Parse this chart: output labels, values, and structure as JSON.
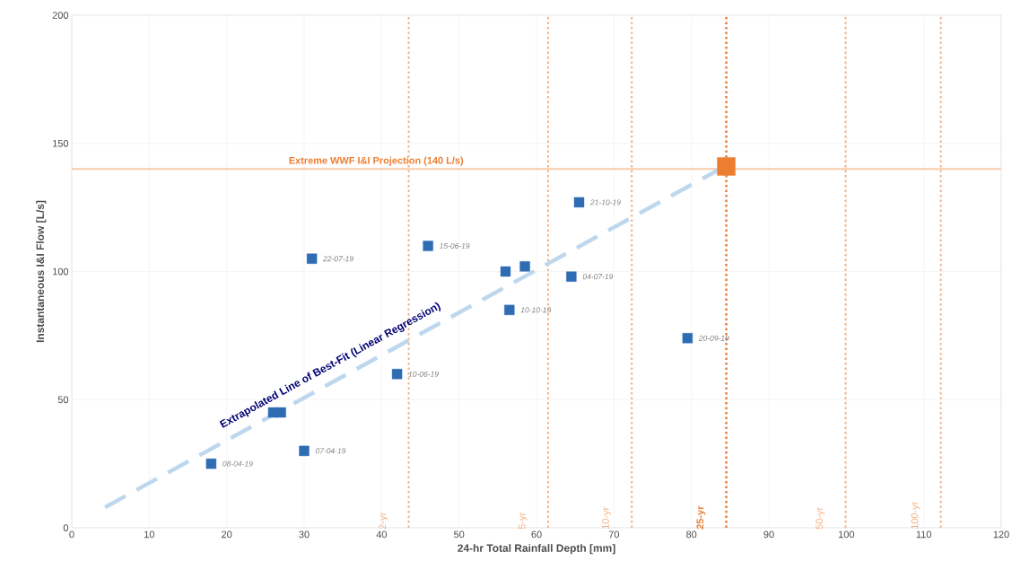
{
  "chart_data": {
    "type": "scatter",
    "xlabel": "24-hr Total Rainfall Depth  [mm]",
    "ylabel": "Instantaneous I&I Flow [L/s]",
    "xlim": [
      0,
      120
    ],
    "xticks": [
      0,
      10,
      20,
      30,
      40,
      50,
      60,
      70,
      80,
      90,
      100,
      110,
      120
    ],
    "ylim": [
      0,
      200
    ],
    "yticks": [
      0,
      50,
      100,
      150,
      200
    ],
    "grid": true,
    "series": [
      {
        "color": "#2e6db4",
        "marker": "square",
        "x": [
          18,
          30,
          26,
          27,
          42,
          31,
          46,
          56,
          58.5,
          64.5,
          56.5,
          65.5,
          79.5
        ],
        "values": [
          25,
          30,
          45,
          45,
          60,
          105,
          110,
          100,
          102,
          98,
          85,
          127,
          74
        ],
        "value_labels": [
          "08-04-19",
          "07-04-19",
          null,
          null,
          "10-06-19",
          "22-07-19",
          "15-06-19",
          null,
          null,
          "04-07-19",
          "10-10-19",
          "21-10-19",
          "20-09-19"
        ]
      },
      {
        "color": "#ed7d31",
        "marker": "square",
        "x": [
          84.5
        ],
        "values": [
          141
        ]
      },
      {
        "type": "line",
        "color": "#bdd7ee",
        "line_style": "dashed",
        "x": [
          4.3,
          83.4
        ],
        "values": [
          8,
          139.5
        ]
      }
    ],
    "ref_lines": [
      {
        "axis": "y",
        "value": 140,
        "label": "Extreme WWF I&I Projection (140 L/s)",
        "color": "#f8cbad",
        "line_style": "solid"
      },
      {
        "axis": "x",
        "value": 43.5,
        "label": "2-yr",
        "color": "#f4b183",
        "line_style": "dotted"
      },
      {
        "axis": "x",
        "value": 61.5,
        "label": "5-yr",
        "color": "#f4b183",
        "line_style": "dotted"
      },
      {
        "axis": "x",
        "value": 72.3,
        "label": "10-yr",
        "color": "#f4b183",
        "line_style": "dotted"
      },
      {
        "axis": "x",
        "value": 84.5,
        "label": "25-yr",
        "color": "#ed7d31",
        "line_style": "dotted"
      },
      {
        "axis": "x",
        "value": 99.9,
        "label": "50-yr",
        "color": "#f4b183",
        "line_style": "dotted"
      },
      {
        "axis": "x",
        "value": 112.2,
        "label": "100-yr",
        "color": "#f4b183",
        "line_style": "dotted"
      }
    ],
    "annotations": [
      "Extrapolated Line of Best-Fit (Linear Regression)"
    ]
  }
}
